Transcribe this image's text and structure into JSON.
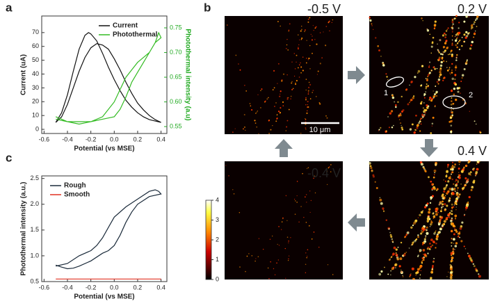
{
  "chart_data": [
    {
      "type": "line",
      "panel_label": "a",
      "x_label": "Potential (vs MSE)",
      "y_label": "Current (uA)",
      "y2_label": "Photothermal intensity (a.u)",
      "xlim": [
        -0.62,
        0.45
      ],
      "xticks": [
        -0.6,
        -0.4,
        -0.2,
        {
          "value": 0,
          "label": "0.0"
        },
        0.2,
        0.4
      ],
      "ylim": [
        -3,
        82
      ],
      "yticks": [
        0,
        10,
        20,
        30,
        40,
        50,
        60,
        70
      ],
      "y2lim": [
        0.536,
        0.774
      ],
      "y2ticks": [
        0.55,
        {
          "value": 0.6,
          "label": "0.60"
        },
        0.65,
        {
          "value": 0.7,
          "label": "0.70"
        },
        0.75
      ],
      "legend": "top-right",
      "series": [
        {
          "name": "Current",
          "color": "#111111",
          "x": [
            -0.5,
            -0.45,
            -0.4,
            -0.35,
            -0.3,
            -0.25,
            -0.22,
            -0.2,
            -0.15,
            -0.1,
            -0.05,
            0,
            0.05,
            0.1,
            0.15,
            0.2,
            0.25,
            0.3,
            0.35,
            0.4,
            0.35,
            0.3,
            0.25,
            0.2,
            0.15,
            0.1,
            0.05,
            0,
            -0.05,
            -0.1,
            -0.15,
            -0.2,
            -0.25,
            -0.3,
            -0.35,
            -0.4,
            -0.45,
            -0.5
          ],
          "values": [
            5,
            12,
            25,
            42,
            58,
            68,
            70,
            69,
            64,
            55,
            45,
            36,
            28,
            21,
            16,
            12,
            9,
            7,
            6,
            5,
            7,
            10,
            14,
            19,
            26,
            34,
            43,
            51,
            58,
            61,
            62,
            59,
            52,
            42,
            30,
            18,
            9,
            5
          ]
        },
        {
          "name": "Photothermal",
          "color": "#33bb22",
          "axis": "y2",
          "x": [
            -0.5,
            -0.45,
            -0.4,
            -0.3,
            -0.2,
            -0.1,
            0,
            0.05,
            0.1,
            0.15,
            0.2,
            0.25,
            0.3,
            0.35,
            0.4,
            0.38,
            0.35,
            0.3,
            0.25,
            0.2,
            0.15,
            0.1,
            0.05,
            0,
            -0.1,
            -0.2,
            -0.3,
            -0.4,
            -0.5
          ],
          "values": [
            0.57,
            0.565,
            0.56,
            0.56,
            0.56,
            0.565,
            0.57,
            0.585,
            0.61,
            0.64,
            0.66,
            0.68,
            0.7,
            0.72,
            0.73,
            0.74,
            0.72,
            0.7,
            0.69,
            0.68,
            0.665,
            0.65,
            0.625,
            0.6,
            0.57,
            0.56,
            0.555,
            0.56,
            0.565
          ]
        }
      ]
    },
    {
      "type": "line",
      "panel_label": "c",
      "x_label": "Potential (vs MSE)",
      "y_label": "Photothermal intensity (a.u.)",
      "xlim": [
        -0.62,
        0.45
      ],
      "xticks": [
        -0.6,
        -0.4,
        -0.2,
        {
          "value": 0,
          "label": "0.0"
        },
        0.2,
        0.4
      ],
      "ylim": [
        0.5,
        2.55
      ],
      "yticks": [
        0.5,
        {
          "value": 1,
          "label": "1.0"
        },
        1.5,
        {
          "value": 2,
          "label": "2.0"
        },
        2.5
      ],
      "legend": "top-left",
      "series": [
        {
          "name": "Rough",
          "color": "#1a2a3a",
          "x": [
            -0.5,
            -0.45,
            -0.4,
            -0.35,
            -0.3,
            -0.2,
            -0.1,
            -0.05,
            0,
            0.05,
            0.1,
            0.15,
            0.2,
            0.3,
            0.4,
            0.38,
            0.35,
            0.3,
            0.2,
            0.1,
            0,
            -0.05,
            -0.1,
            -0.15,
            -0.2,
            -0.3,
            -0.4,
            -0.5
          ],
          "values": [
            0.82,
            0.78,
            0.75,
            0.76,
            0.8,
            0.9,
            1.05,
            1.1,
            1.2,
            1.4,
            1.65,
            1.85,
            2.0,
            2.15,
            2.2,
            2.25,
            2.28,
            2.25,
            2.1,
            1.95,
            1.75,
            1.55,
            1.35,
            1.2,
            1.1,
            1.0,
            0.85,
            0.8
          ]
        },
        {
          "name": "Smooth",
          "color": "#e03020",
          "x": [
            -0.5,
            -0.3,
            -0.1,
            0.1,
            0.3,
            0.4
          ],
          "values": [
            0.55,
            0.55,
            0.55,
            0.55,
            0.55,
            0.55
          ]
        }
      ]
    },
    {
      "type": "colorbar",
      "ylim": [
        0,
        4
      ],
      "yticks": [
        0,
        1,
        2,
        3,
        4
      ]
    }
  ],
  "panel_b": {
    "panel_label": "b",
    "images": [
      {
        "label": "-0.5 V"
      },
      {
        "label": "0.2 V"
      },
      {
        "label": "0.4 V"
      },
      {
        "label": "-0.4 V"
      }
    ],
    "scale_bar": "10 μm",
    "regions": [
      "1",
      "2"
    ]
  }
}
